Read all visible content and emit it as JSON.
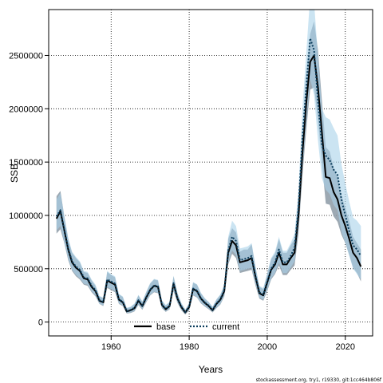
{
  "chart_data": {
    "type": "line",
    "title": "",
    "xlabel": "Years",
    "ylabel": "SSB",
    "xlim": [
      1944,
      2027
    ],
    "ylim": [
      -130000,
      2930000
    ],
    "x_ticks": [
      1960,
      1980,
      2000,
      2020
    ],
    "y_ticks": [
      0,
      500000,
      1000000,
      1500000,
      2000000,
      2500000
    ],
    "y_tick_labels": [
      "0",
      "500000",
      "1000000",
      "1500000",
      "2000000",
      "2500000"
    ],
    "grid": true,
    "legend_position": "bottom-center",
    "footer": "stockassessment.org, try1, r19330, git:1cc464b806f",
    "x": [
      1946,
      1947,
      1948,
      1949,
      1950,
      1951,
      1952,
      1953,
      1954,
      1955,
      1956,
      1957,
      1958,
      1959,
      1960,
      1961,
      1962,
      1963,
      1964,
      1965,
      1966,
      1967,
      1968,
      1969,
      1970,
      1971,
      1972,
      1973,
      1974,
      1975,
      1976,
      1977,
      1978,
      1979,
      1980,
      1981,
      1982,
      1983,
      1984,
      1985,
      1986,
      1987,
      1988,
      1989,
      1990,
      1991,
      1992,
      1993,
      1994,
      1995,
      1996,
      1997,
      1998,
      1999,
      2000,
      2001,
      2002,
      2003,
      2004,
      2005,
      2006,
      2007,
      2008,
      2009,
      2010,
      2011,
      2012,
      2013,
      2014,
      2015,
      2016,
      2017,
      2018,
      2019,
      2020,
      2021,
      2022,
      2023,
      2024
    ],
    "series": [
      {
        "name": "base",
        "color": "#000000",
        "style": "solid",
        "band_color": "#8c9aa6",
        "values": [
          970000,
          1040000,
          860000,
          680000,
          560000,
          510000,
          480000,
          410000,
          400000,
          330000,
          290000,
          200000,
          185000,
          390000,
          370000,
          350000,
          210000,
          185000,
          100000,
          110000,
          130000,
          200000,
          150000,
          230000,
          300000,
          340000,
          330000,
          160000,
          120000,
          150000,
          360000,
          220000,
          140000,
          90000,
          140000,
          310000,
          290000,
          220000,
          180000,
          150000,
          110000,
          170000,
          210000,
          290000,
          650000,
          760000,
          720000,
          560000,
          570000,
          580000,
          600000,
          420000,
          270000,
          250000,
          370000,
          490000,
          540000,
          650000,
          540000,
          540000,
          600000,
          650000,
          1000000,
          1580000,
          2050000,
          2440000,
          2500000,
          2200000,
          1780000,
          1360000,
          1350000,
          1220000,
          1150000,
          1000000,
          900000,
          780000,
          650000,
          600000,
          520000
        ],
        "upper": [
          1180000,
          1230000,
          990000,
          780000,
          650000,
          600000,
          560000,
          470000,
          460000,
          390000,
          340000,
          240000,
          225000,
          470000,
          440000,
          420000,
          260000,
          235000,
          130000,
          140000,
          170000,
          250000,
          190000,
          280000,
          360000,
          400000,
          390000,
          200000,
          155000,
          185000,
          430000,
          270000,
          175000,
          115000,
          175000,
          370000,
          350000,
          270000,
          220000,
          185000,
          140000,
          210000,
          255000,
          345000,
          780000,
          880000,
          840000,
          660000,
          680000,
          680000,
          730000,
          510000,
          330000,
          310000,
          450000,
          590000,
          640000,
          780000,
          650000,
          650000,
          720000,
          780000,
          1180000,
          1800000,
          2320000,
          2700000,
          2820000,
          2550000,
          2080000,
          1640000,
          1600000,
          1450000,
          1360000,
          1190000,
          1070000,
          950000,
          800000,
          740000,
          680000
        ],
        "lower": [
          830000,
          870000,
          740000,
          580000,
          480000,
          430000,
          400000,
          350000,
          340000,
          280000,
          240000,
          170000,
          150000,
          320000,
          300000,
          280000,
          170000,
          150000,
          80000,
          85000,
          100000,
          160000,
          115000,
          185000,
          250000,
          280000,
          270000,
          130000,
          95000,
          120000,
          290000,
          180000,
          110000,
          70000,
          110000,
          250000,
          230000,
          175000,
          145000,
          120000,
          90000,
          130000,
          165000,
          240000,
          540000,
          640000,
          600000,
          460000,
          470000,
          480000,
          490000,
          340000,
          220000,
          200000,
          290000,
          400000,
          450000,
          530000,
          440000,
          440000,
          490000,
          530000,
          830000,
          1370000,
          1800000,
          2180000,
          2200000,
          1890000,
          1500000,
          1110000,
          1100000,
          990000,
          940000,
          820000,
          740000,
          630000,
          510000,
          460000,
          380000
        ]
      },
      {
        "name": "current",
        "color": "#0b3d5c",
        "style": "dotted",
        "band_color": "#a9d2ea",
        "values": [
          990000,
          1050000,
          870000,
          690000,
          570000,
          520000,
          490000,
          420000,
          410000,
          340000,
          300000,
          205000,
          190000,
          400000,
          380000,
          360000,
          215000,
          190000,
          105000,
          115000,
          135000,
          205000,
          155000,
          235000,
          305000,
          345000,
          335000,
          165000,
          125000,
          155000,
          365000,
          225000,
          145000,
          95000,
          145000,
          315000,
          295000,
          225000,
          185000,
          155000,
          115000,
          175000,
          215000,
          300000,
          670000,
          800000,
          760000,
          580000,
          590000,
          600000,
          620000,
          430000,
          280000,
          260000,
          380000,
          500000,
          560000,
          680000,
          560000,
          560000,
          620000,
          700000,
          1070000,
          1720000,
          2200000,
          2660000,
          2550000,
          2080000,
          1660000,
          1560000,
          1520000,
          1430000,
          1380000,
          1150000,
          1000000,
          850000,
          720000,
          680000,
          620000
        ],
        "upper": [
          1150000,
          1210000,
          1000000,
          790000,
          660000,
          610000,
          570000,
          480000,
          470000,
          400000,
          350000,
          245000,
          230000,
          480000,
          450000,
          430000,
          265000,
          240000,
          135000,
          145000,
          175000,
          255000,
          195000,
          285000,
          365000,
          405000,
          395000,
          205000,
          160000,
          190000,
          435000,
          275000,
          180000,
          120000,
          180000,
          375000,
          355000,
          275000,
          225000,
          190000,
          145000,
          215000,
          260000,
          355000,
          800000,
          950000,
          900000,
          690000,
          700000,
          710000,
          740000,
          520000,
          340000,
          320000,
          460000,
          600000,
          660000,
          800000,
          670000,
          670000,
          740000,
          830000,
          1250000,
          2000000,
          2520000,
          3050000,
          3000000,
          2490000,
          2000000,
          1920000,
          1900000,
          1820000,
          1750000,
          1480000,
          1300000,
          1130000,
          980000,
          950000,
          900000
        ],
        "lower": [
          860000,
          900000,
          750000,
          590000,
          490000,
          440000,
          410000,
          360000,
          350000,
          290000,
          250000,
          170000,
          155000,
          330000,
          310000,
          290000,
          175000,
          155000,
          85000,
          90000,
          105000,
          165000,
          120000,
          190000,
          255000,
          285000,
          275000,
          135000,
          100000,
          125000,
          300000,
          185000,
          115000,
          75000,
          115000,
          255000,
          235000,
          180000,
          150000,
          125000,
          95000,
          135000,
          170000,
          245000,
          560000,
          670000,
          630000,
          480000,
          490000,
          500000,
          510000,
          350000,
          230000,
          210000,
          300000,
          410000,
          460000,
          560000,
          460000,
          460000,
          510000,
          570000,
          900000,
          1450000,
          1880000,
          2280000,
          2130000,
          1700000,
          1350000,
          1240000,
          1200000,
          1100000,
          1050000,
          850000,
          740000,
          620000,
          500000,
          450000,
          400000
        ]
      }
    ]
  }
}
